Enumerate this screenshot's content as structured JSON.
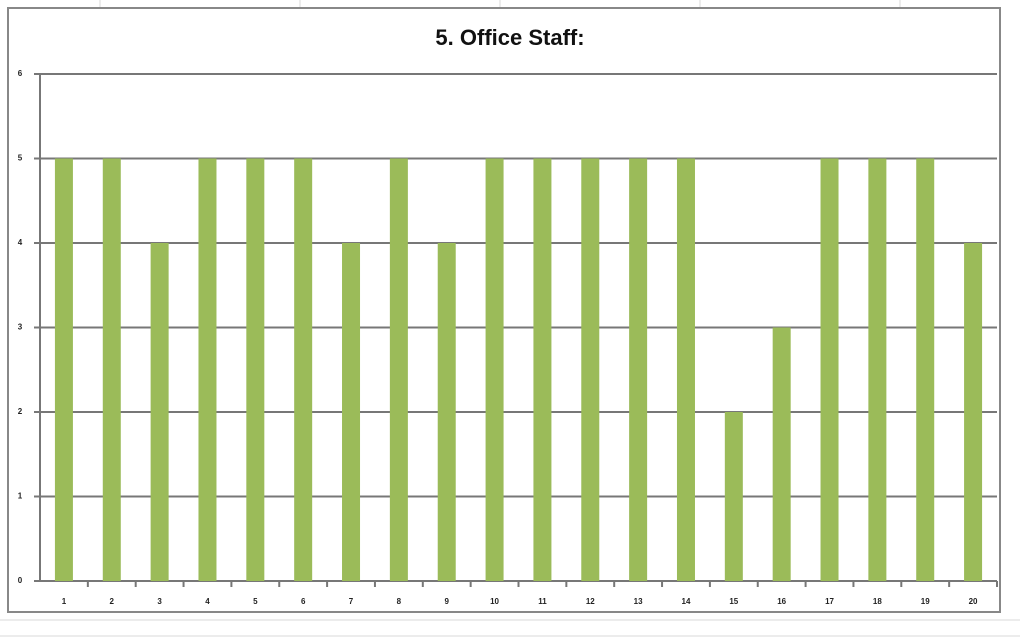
{
  "chart_data": {
    "type": "bar",
    "title": "5. Office Staff:",
    "categories": [
      1,
      2,
      3,
      4,
      5,
      6,
      7,
      8,
      9,
      10,
      11,
      12,
      13,
      14,
      15,
      16,
      17,
      18,
      19,
      20
    ],
    "values": [
      5,
      5,
      4,
      5,
      5,
      5,
      4,
      5,
      4,
      5,
      5,
      5,
      5,
      5,
      2,
      3,
      5,
      5,
      5,
      4
    ],
    "color": "#9bbb59",
    "ylim": [
      0,
      6
    ],
    "yticks": [
      0,
      1,
      2,
      3,
      4,
      5,
      6
    ],
    "grid": true
  }
}
